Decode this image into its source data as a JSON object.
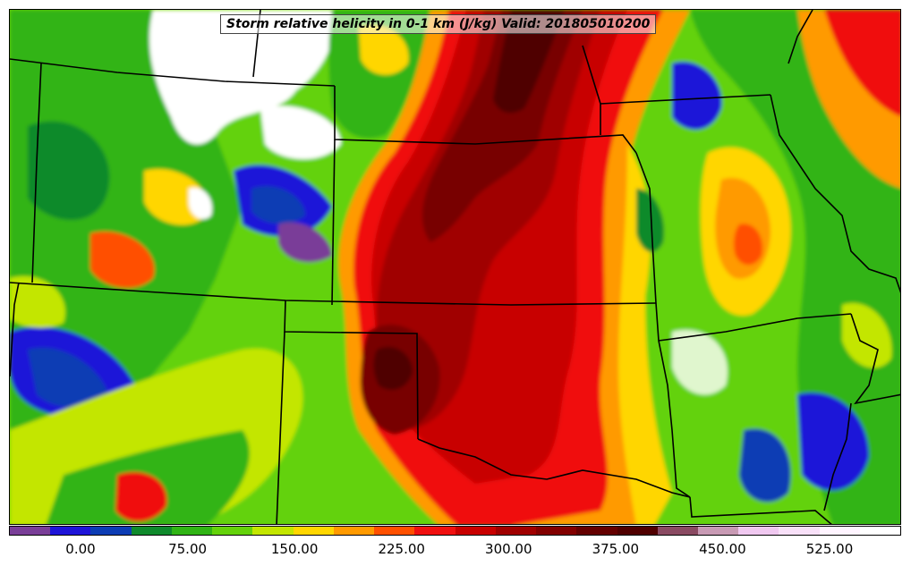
{
  "title": "Storm relative helicity in 0-1 km (J/kg) Valid: 201805010200",
  "colorbar": {
    "colors": [
      "#7a3e98",
      "#1e14d8",
      "#0c3cb4",
      "#0f8a2c",
      "#30b415",
      "#64d20a",
      "#c3e600",
      "#ffd600",
      "#ff9a00",
      "#ff5000",
      "#f01010",
      "#c80000",
      "#a00000",
      "#820000",
      "#640000",
      "#500000",
      "#8a4a62",
      "#c89ab4",
      "#f0c8f0",
      "#f8e0f8",
      "#fff4ff",
      "#ffffff"
    ],
    "ticks": [
      "0.00",
      "75.00",
      "150.00",
      "225.00",
      "300.00",
      "375.00",
      "450.00",
      "525.00"
    ]
  },
  "map": {
    "palette": {
      "white": "#ffffff",
      "purple": "#7a3e98",
      "blue": "#1e14d8",
      "navy": "#0c3cb4",
      "darkgreen": "#0f8a2c",
      "green": "#30b415",
      "lightgreen": "#64d20a",
      "lime": "#c3e600",
      "yellow": "#ffd600",
      "orange": "#ff9a00",
      "redorange": "#ff5000",
      "red": "#f01010",
      "darkred": "#c80000",
      "maroon": "#a00000",
      "deepmaroon": "#780000",
      "blackred": "#500000",
      "borders": "#000000"
    }
  }
}
